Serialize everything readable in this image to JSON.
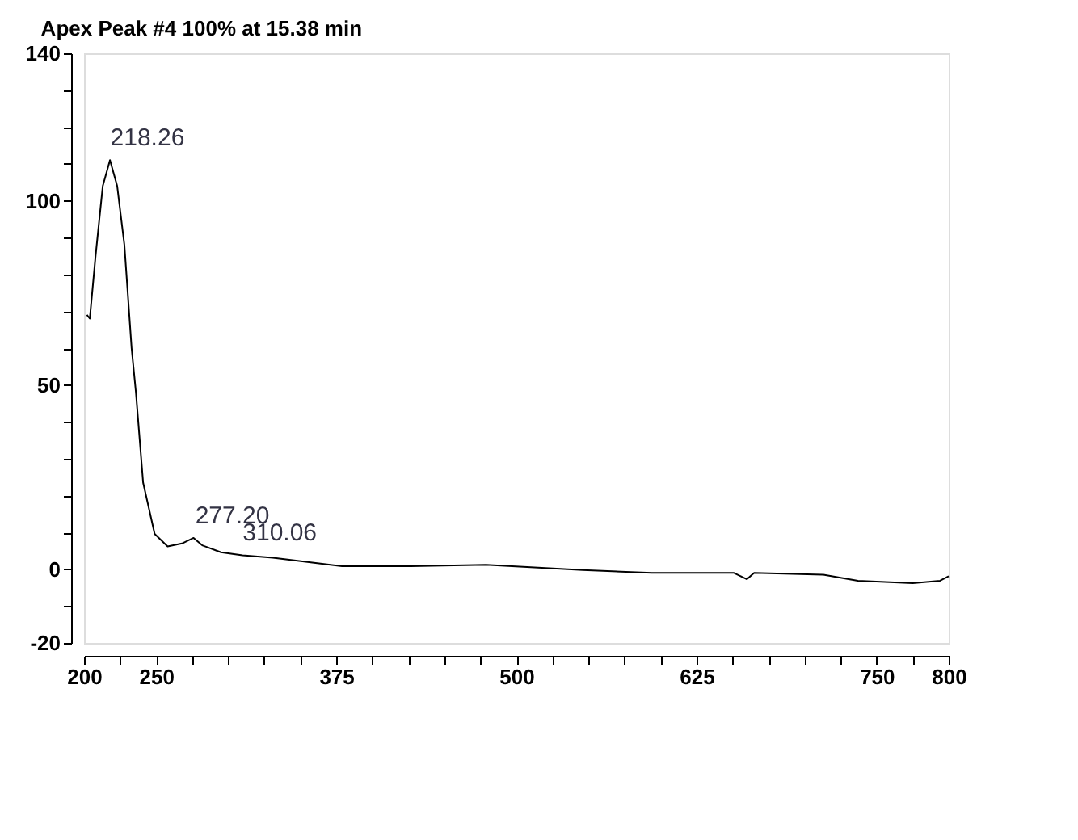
{
  "chart_data": {
    "type": "line",
    "title": "Apex Peak #4 100% at 15.38 min",
    "x": [
      202,
      204,
      208,
      213,
      218,
      223,
      228,
      233,
      236,
      241,
      249,
      258,
      268,
      276,
      282,
      295,
      310,
      331,
      379,
      426,
      479,
      546,
      594,
      651,
      660,
      665,
      713,
      737,
      775,
      794,
      800
    ],
    "series": [
      {
        "color": "#000000",
        "values": [
          69,
          68,
          85,
          104,
          111,
          104,
          88,
          60,
          48,
          23.5,
          9.6,
          6.2,
          7,
          8.5,
          6.5,
          4.6,
          3.8,
          3.1,
          0.8,
          0.8,
          1.2,
          -0.2,
          -1,
          -1,
          -2.7,
          -1,
          -1.5,
          -3.1,
          -3.8,
          -3.1,
          -1.9
        ]
      }
    ],
    "annotations": [
      {
        "text": "218.26",
        "x": 218.26,
        "y": 111
      },
      {
        "text": "277.20",
        "x": 277.2,
        "y": 8.5
      },
      {
        "text": "310.06",
        "x": 310.06,
        "y": 3.8
      }
    ],
    "xlim": [
      200,
      800
    ],
    "xticks": [
      200,
      {
        "value": 225,
        "label": null
      },
      250,
      {
        "value": 275,
        "label": null
      },
      {
        "value": 300,
        "label": null
      },
      {
        "value": 325,
        "label": null
      },
      {
        "value": 350,
        "label": null
      },
      375,
      {
        "value": 400,
        "label": null
      },
      {
        "value": 425,
        "label": null
      },
      {
        "value": 450,
        "label": null
      },
      {
        "value": 475,
        "label": null
      },
      500,
      {
        "value": 525,
        "label": null
      },
      {
        "value": 550,
        "label": null
      },
      {
        "value": 575,
        "label": null
      },
      {
        "value": 600,
        "label": null
      },
      625,
      {
        "value": 650,
        "label": null
      },
      {
        "value": 675,
        "label": null
      },
      {
        "value": 700,
        "label": null
      },
      {
        "value": 725,
        "label": null
      },
      750,
      {
        "value": 775,
        "label": null
      },
      800
    ],
    "ylim": [
      -20,
      140
    ],
    "yticks": [
      -20,
      {
        "value": -10,
        "label": null
      },
      0,
      {
        "value": 10,
        "label": null
      },
      {
        "value": 20,
        "label": null
      },
      {
        "value": 30,
        "label": null
      },
      {
        "value": 40,
        "label": null
      },
      50,
      {
        "value": 60,
        "label": null
      },
      {
        "value": 70,
        "label": null
      },
      {
        "value": 80,
        "label": null
      },
      {
        "value": 90,
        "label": null
      },
      100,
      {
        "value": 110,
        "label": null
      },
      {
        "value": 120,
        "label": null
      },
      {
        "value": 130,
        "label": null
      },
      140
    ],
    "grid": false,
    "legend": false
  }
}
